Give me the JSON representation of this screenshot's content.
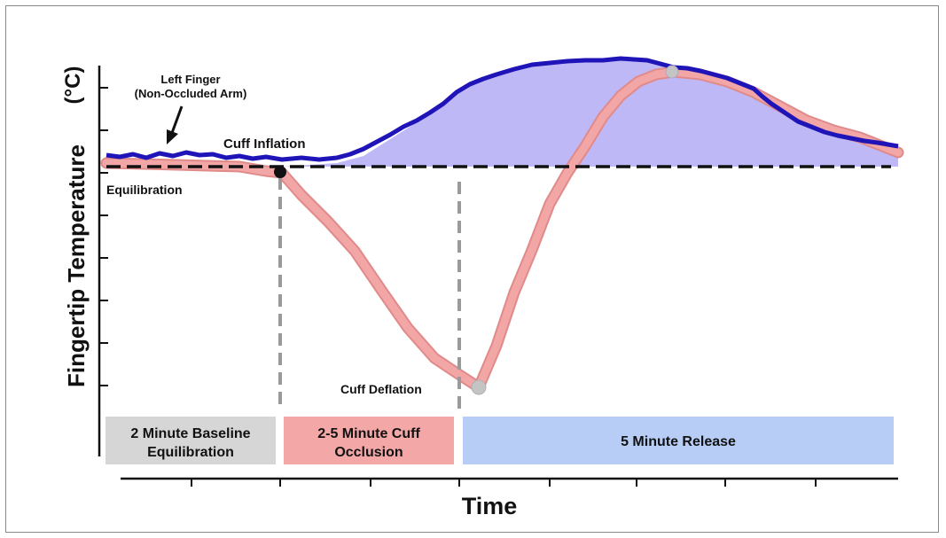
{
  "axes": {
    "ylabel": "Fingertip Temperature",
    "yunit": "(°C)",
    "xlabel": "Time"
  },
  "annotations": {
    "left_finger_line1": "Left Finger",
    "left_finger_line2": "(Non-Occluded Arm)",
    "cuff_inflation": "Cuff Inflation",
    "equilibration": "Equilibration",
    "cuff_deflation": "Cuff Deflation"
  },
  "phases": [
    {
      "line1": "2 Minute Baseline",
      "line2": "Equilibration",
      "color": "#d6d6d6"
    },
    {
      "line1": "2-5 Minute Cuff",
      "line2": "Occlusion",
      "color": "#f4a7a7"
    },
    {
      "line1": "5 Minute Release",
      "line2": "",
      "color": "#b7cdf5"
    }
  ],
  "colors": {
    "non_occluded_line": "#1f14b8",
    "non_occluded_fill": "#b7b0f5",
    "occluded_line": "#f2a6a6",
    "occluded_edge": "#e08a8a",
    "baseline": "#111111",
    "phase_divider": "#9a9a9a"
  },
  "icons": [
    "pointer-arrow-icon",
    "cuff-inflation-marker-icon",
    "cuff-deflation-marker-icon",
    "peak-marker-icon"
  ]
}
